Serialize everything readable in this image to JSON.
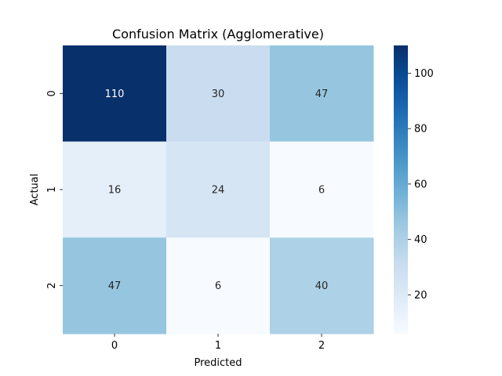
{
  "chart_data": {
    "type": "heatmap",
    "title": "Confusion Matrix (Agglomerative)",
    "xlabel": "Predicted",
    "ylabel": "Actual",
    "x_categories": [
      "0",
      "1",
      "2"
    ],
    "y_categories": [
      "0",
      "1",
      "2"
    ],
    "values": [
      [
        110,
        30,
        47
      ],
      [
        16,
        24,
        6
      ],
      [
        47,
        6,
        40
      ]
    ],
    "colormap": "Blues",
    "colorbar": {
      "range": [
        6,
        110
      ],
      "ticks": [
        20,
        40,
        60,
        80,
        100
      ]
    }
  }
}
